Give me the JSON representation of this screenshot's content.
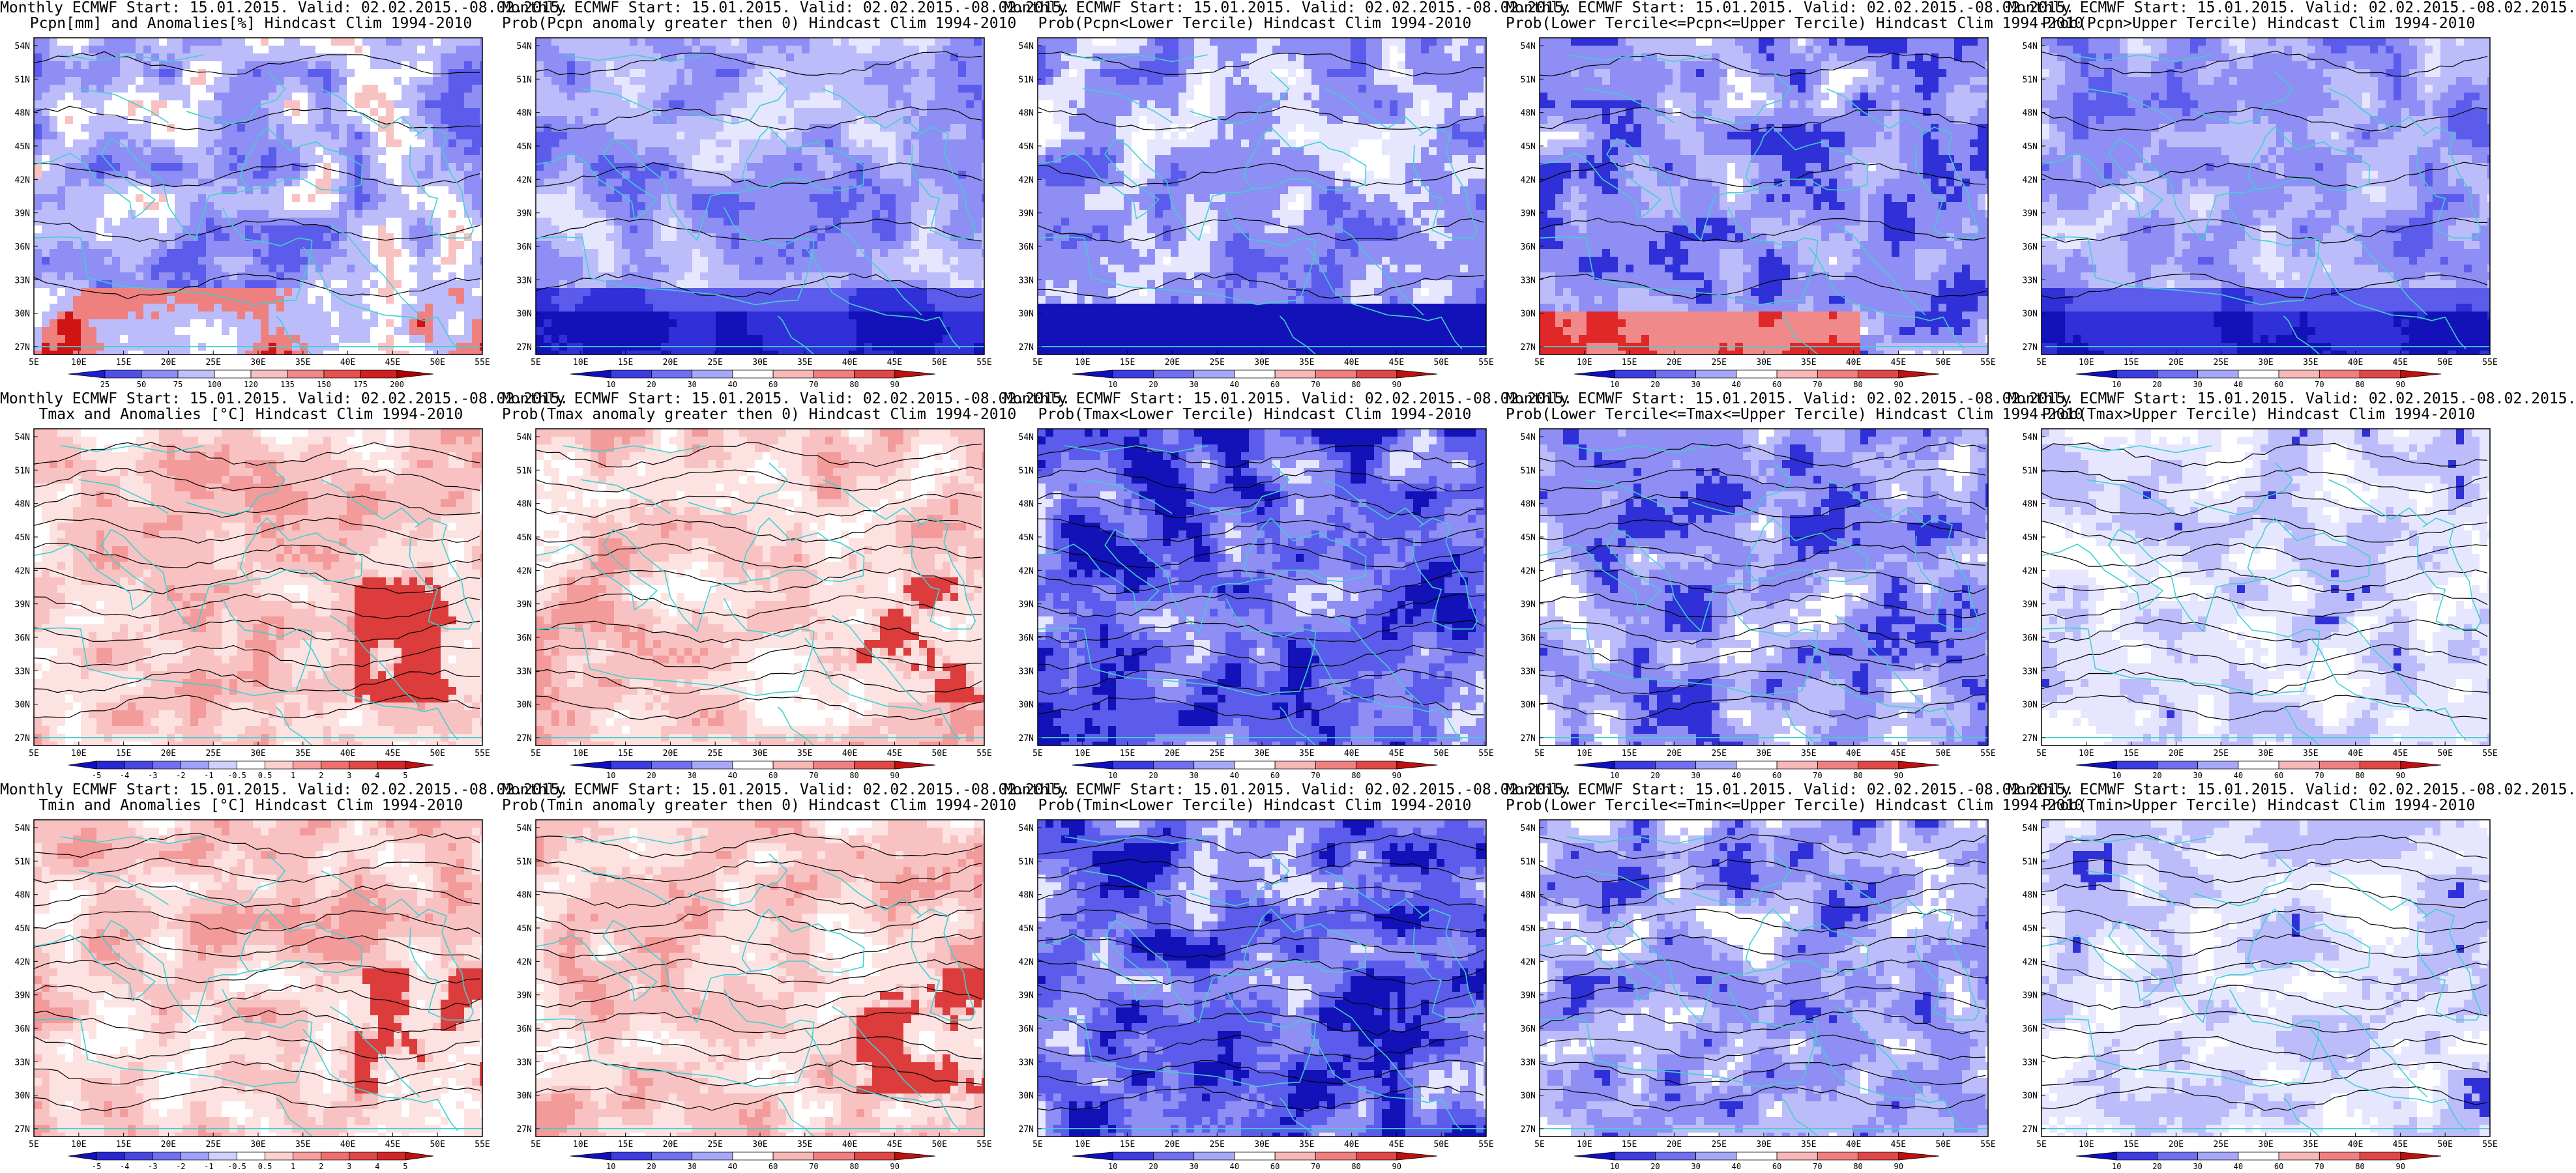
{
  "rows": [
    {
      "panels": [
        {
          "title1": "Monthly ECMWF Start: 15.01.2015. Valid: 02.02.2015.-08.02.2015.",
          "title2": "Pcpn[mm] and Anomalies[%] Hindcast Clim 1994-2010",
          "scheme": "anom",
          "kind": "pcpn-anom",
          "colorbar": {
            "labels": [
              "25",
              "50",
              "75",
              "100",
              "120",
              "135",
              "150",
              "175",
              "200"
            ],
            "colors": [
              "#2020d0",
              "#5050e8",
              "#8c8cf4",
              "#c0c0fa",
              "#ffffff",
              "#f8c0c0",
              "#f08888",
              "#e85050",
              "#d02020",
              "#b00000"
            ]
          }
        },
        {
          "title1": "Monthly ECMWF Start: 15.01.2015. Valid: 02.02.2015.-08.02.2015.",
          "title2": "Prob(Pcpn anomaly greater then 0) Hindcast Clim 1994-2010",
          "scheme": "blue",
          "kind": "pcpn-prob",
          "colorbar": {
            "labels": [
              "10",
              "20",
              "30",
              "40",
              "60",
              "70",
              "80",
              "90"
            ],
            "colors": [
              "#1010c0",
              "#3c3ce0",
              "#7070f0",
              "#a8a8f8",
              "#ffffff",
              "#f8b8b8",
              "#f08080",
              "#e04848",
              "#c01010"
            ]
          }
        },
        {
          "title1": "Monthly ECMWF Start: 15.01.2015. Valid: 02.02.2015.-08.02.2015.",
          "title2": "Prob(Pcpn<Lower Tercile) Hindcast Clim 1994-2010",
          "scheme": "blue",
          "kind": "pcpn-lower",
          "colorbar": {
            "labels": [
              "10",
              "20",
              "30",
              "40",
              "60",
              "70",
              "80",
              "90"
            ],
            "colors": [
              "#1010c0",
              "#3c3ce0",
              "#7070f0",
              "#a8a8f8",
              "#ffffff",
              "#f8b8b8",
              "#f08080",
              "#e04848",
              "#c01010"
            ]
          }
        },
        {
          "title1": "Monthly ECMWF Start: 15.01.2015. Valid: 02.02.2015.-08.02.2015.",
          "title2": "Prob(Lower Tercile<=Pcpn<=Upper Tercile) Hindcast Clim 1994-2010",
          "scheme": "blue",
          "kind": "pcpn-mid",
          "colorbar": {
            "labels": [
              "10",
              "20",
              "30",
              "40",
              "60",
              "70",
              "80",
              "90"
            ],
            "colors": [
              "#1010c0",
              "#3c3ce0",
              "#7070f0",
              "#a8a8f8",
              "#ffffff",
              "#f8b8b8",
              "#f08080",
              "#e04848",
              "#c01010"
            ]
          }
        },
        {
          "title1": "Monthly ECMWF Start: 15.01.2015. Valid: 02.02.2015.-08.02.2015.",
          "title2": "Prob(Pcpn>Upper Tercile) Hindcast Clim 1994-2010",
          "scheme": "blue",
          "kind": "pcpn-upper",
          "colorbar": {
            "labels": [
              "10",
              "20",
              "30",
              "40",
              "60",
              "70",
              "80",
              "90"
            ],
            "colors": [
              "#1010c0",
              "#3c3ce0",
              "#7070f0",
              "#a8a8f8",
              "#ffffff",
              "#f8b8b8",
              "#f08080",
              "#e04848",
              "#c01010"
            ]
          }
        }
      ]
    },
    {
      "panels": [
        {
          "title1": "Monthly ECMWF Start: 15.01.2015. Valid: 02.02.2015.-08.02.2015.",
          "title2": "Tmax and Anomalies [°C] Hindcast Clim 1994-2010",
          "scheme": "red",
          "kind": "t-anom",
          "colorbar": {
            "labels": [
              "-5",
              "-4",
              "-3",
              "-2",
              "-1",
              "-0.5",
              "0.5",
              "1",
              "2",
              "3",
              "4",
              "5"
            ],
            "colors": [
              "#1010c0",
              "#2828d0",
              "#4848e0",
              "#7070f0",
              "#a0a0f8",
              "#d0d0fc",
              "#ffffff",
              "#fcd0d0",
              "#f8a0a0",
              "#f07070",
              "#e04848",
              "#d02828",
              "#c01010"
            ]
          }
        },
        {
          "title1": "Monthly ECMWF Start: 15.01.2015. Valid: 02.02.2015.-08.02.2015.",
          "title2": "Prob(Tmax anomaly greater then 0) Hindcast Clim 1994-2010",
          "scheme": "red",
          "kind": "t-prob",
          "colorbar": {
            "labels": [
              "10",
              "20",
              "30",
              "40",
              "60",
              "70",
              "80",
              "90"
            ],
            "colors": [
              "#1010c0",
              "#3c3ce0",
              "#7070f0",
              "#a8a8f8",
              "#ffffff",
              "#f8b8b8",
              "#f08080",
              "#e04848",
              "#c01010"
            ]
          }
        },
        {
          "title1": "Monthly ECMWF Start: 15.01.2015. Valid: 02.02.2015.-08.02.2015.",
          "title2": "Prob(Tmax<Lower Tercile) Hindcast Clim 1994-2010",
          "scheme": "blue",
          "kind": "t-lower",
          "colorbar": {
            "labels": [
              "10",
              "20",
              "30",
              "40",
              "60",
              "70",
              "80",
              "90"
            ],
            "colors": [
              "#1010c0",
              "#3c3ce0",
              "#7070f0",
              "#a8a8f8",
              "#ffffff",
              "#f8b8b8",
              "#f08080",
              "#e04848",
              "#c01010"
            ]
          }
        },
        {
          "title1": "Monthly ECMWF Start: 15.01.2015. Valid: 02.02.2015.-08.02.2015.",
          "title2": "Prob(Lower Tercile<=Tmax<=Upper Tercile) Hindcast Clim 1994-2010",
          "scheme": "blue",
          "kind": "t-mid",
          "colorbar": {
            "labels": [
              "10",
              "20",
              "30",
              "40",
              "60",
              "70",
              "80",
              "90"
            ],
            "colors": [
              "#1010c0",
              "#3c3ce0",
              "#7070f0",
              "#a8a8f8",
              "#ffffff",
              "#f8b8b8",
              "#f08080",
              "#e04848",
              "#c01010"
            ]
          }
        },
        {
          "title1": "Monthly ECMWF Start: 15.01.2015. Valid: 02.02.2015.-08.02.2015.",
          "title2": "Prob(Tmax>Upper Tercile) Hindcast Clim 1994-2010",
          "scheme": "light",
          "kind": "t-upper",
          "colorbar": {
            "labels": [
              "10",
              "20",
              "30",
              "40",
              "60",
              "70",
              "80",
              "90"
            ],
            "colors": [
              "#1010c0",
              "#3c3ce0",
              "#7070f0",
              "#a8a8f8",
              "#ffffff",
              "#f8b8b8",
              "#f08080",
              "#e04848",
              "#c01010"
            ]
          }
        }
      ]
    },
    {
      "panels": [
        {
          "title1": "Monthly ECMWF Start: 15.01.2015. Valid: 02.02.2015.-08.02.2015.",
          "title2": "Tmin and Anomalies [°C] Hindcast Clim 1994-2010",
          "scheme": "red",
          "kind": "t-anom",
          "colorbar": {
            "labels": [
              "-5",
              "-4",
              "-3",
              "-2",
              "-1",
              "-0.5",
              "0.5",
              "1",
              "2",
              "3",
              "4",
              "5"
            ],
            "colors": [
              "#1010c0",
              "#2828d0",
              "#4848e0",
              "#7070f0",
              "#a0a0f8",
              "#d0d0fc",
              "#ffffff",
              "#fcd0d0",
              "#f8a0a0",
              "#f07070",
              "#e04848",
              "#d02828",
              "#c01010"
            ]
          }
        },
        {
          "title1": "Monthly ECMWF Start: 15.01.2015. Valid: 02.02.2015.-08.02.2015.",
          "title2": "Prob(Tmin anomaly greater then 0) Hindcast Clim 1994-2010",
          "scheme": "red",
          "kind": "t-prob",
          "colorbar": {
            "labels": [
              "10",
              "20",
              "30",
              "40",
              "60",
              "70",
              "80",
              "90"
            ],
            "colors": [
              "#1010c0",
              "#3c3ce0",
              "#7070f0",
              "#a8a8f8",
              "#ffffff",
              "#f8b8b8",
              "#f08080",
              "#e04848",
              "#c01010"
            ]
          }
        },
        {
          "title1": "Monthly ECMWF Start: 15.01.2015. Valid: 02.02.2015.-08.02.2015.",
          "title2": "Prob(Tmin<Lower Tercile) Hindcast Clim 1994-2010",
          "scheme": "blue",
          "kind": "t-lower",
          "colorbar": {
            "labels": [
              "10",
              "20",
              "30",
              "40",
              "60",
              "70",
              "80",
              "90"
            ],
            "colors": [
              "#1010c0",
              "#3c3ce0",
              "#7070f0",
              "#a8a8f8",
              "#ffffff",
              "#f8b8b8",
              "#f08080",
              "#e04848",
              "#c01010"
            ]
          }
        },
        {
          "title1": "Monthly ECMWF Start: 15.01.2015. Valid: 02.02.2015.-08.02.2015.",
          "title2": "Prob(Lower Tercile<=Tmin<=Upper Tercile) Hindcast Clim 1994-2010",
          "scheme": "blue",
          "kind": "t-mid",
          "colorbar": {
            "labels": [
              "10",
              "20",
              "30",
              "40",
              "60",
              "70",
              "80",
              "90"
            ],
            "colors": [
              "#1010c0",
              "#3c3ce0",
              "#7070f0",
              "#a8a8f8",
              "#ffffff",
              "#f8b8b8",
              "#f08080",
              "#e04848",
              "#c01010"
            ]
          }
        },
        {
          "title1": "Monthly ECMWF Start: 15.01.2015. Valid: 02.02.2015.-08.02.2015.",
          "title2": "Prob(Tmin>Upper Tercile) Hindcast Clim 1994-2010",
          "scheme": "light",
          "kind": "t-upper",
          "colorbar": {
            "labels": [
              "10",
              "20",
              "30",
              "40",
              "60",
              "70",
              "80",
              "90"
            ],
            "colors": [
              "#1010c0",
              "#3c3ce0",
              "#7070f0",
              "#a8a8f8",
              "#ffffff",
              "#f8b8b8",
              "#f08080",
              "#e04848",
              "#c01010"
            ]
          }
        }
      ]
    }
  ],
  "axes": {
    "lat_labels": [
      "54N",
      "51N",
      "48N",
      "45N",
      "42N",
      "39N",
      "36N",
      "33N",
      "30N",
      "27N"
    ],
    "lon_labels": [
      "5E",
      "10E",
      "15E",
      "20E",
      "25E",
      "30E",
      "35E",
      "40E",
      "45E",
      "50E",
      "55E"
    ]
  },
  "colors": {
    "coastline": "#40d0d0",
    "contour": "#000000",
    "frame": "#000000"
  }
}
